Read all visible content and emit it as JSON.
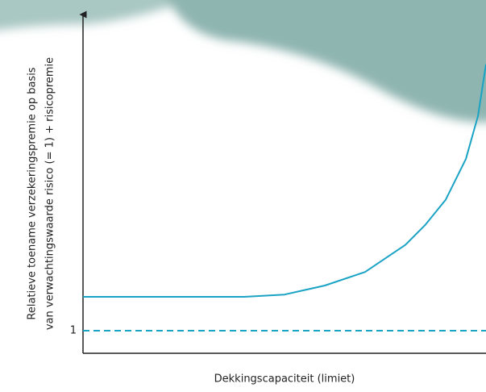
{
  "chart_data": {
    "type": "line",
    "ylabel": [
      "Relatieve toename verzekeringspremie op basis",
      "van verwachtingswaarde risico (= 1) + risicopremie"
    ],
    "xlabel": "Dekkingscapaciteit (limiet)",
    "xlim": [
      0,
      1
    ],
    "ylim": [
      0,
      15
    ],
    "yticks": [
      1
    ],
    "grid": false,
    "series": [
      {
        "color": "#1aa3c4",
        "dashed": false,
        "x": [
          0,
          0.2,
          0.4,
          0.5,
          0.6,
          0.7,
          0.8,
          0.85,
          0.9,
          0.95,
          0.98,
          1
        ],
        "values": [
          2.5,
          2.5,
          2.5,
          2.6,
          3.0,
          3.6,
          4.8,
          5.7,
          6.8,
          8.6,
          10.5,
          12.8
        ]
      },
      {
        "color": "#1aa3c4",
        "dashed": true,
        "x": [
          0,
          1
        ],
        "values": [
          1,
          1
        ]
      }
    ]
  }
}
